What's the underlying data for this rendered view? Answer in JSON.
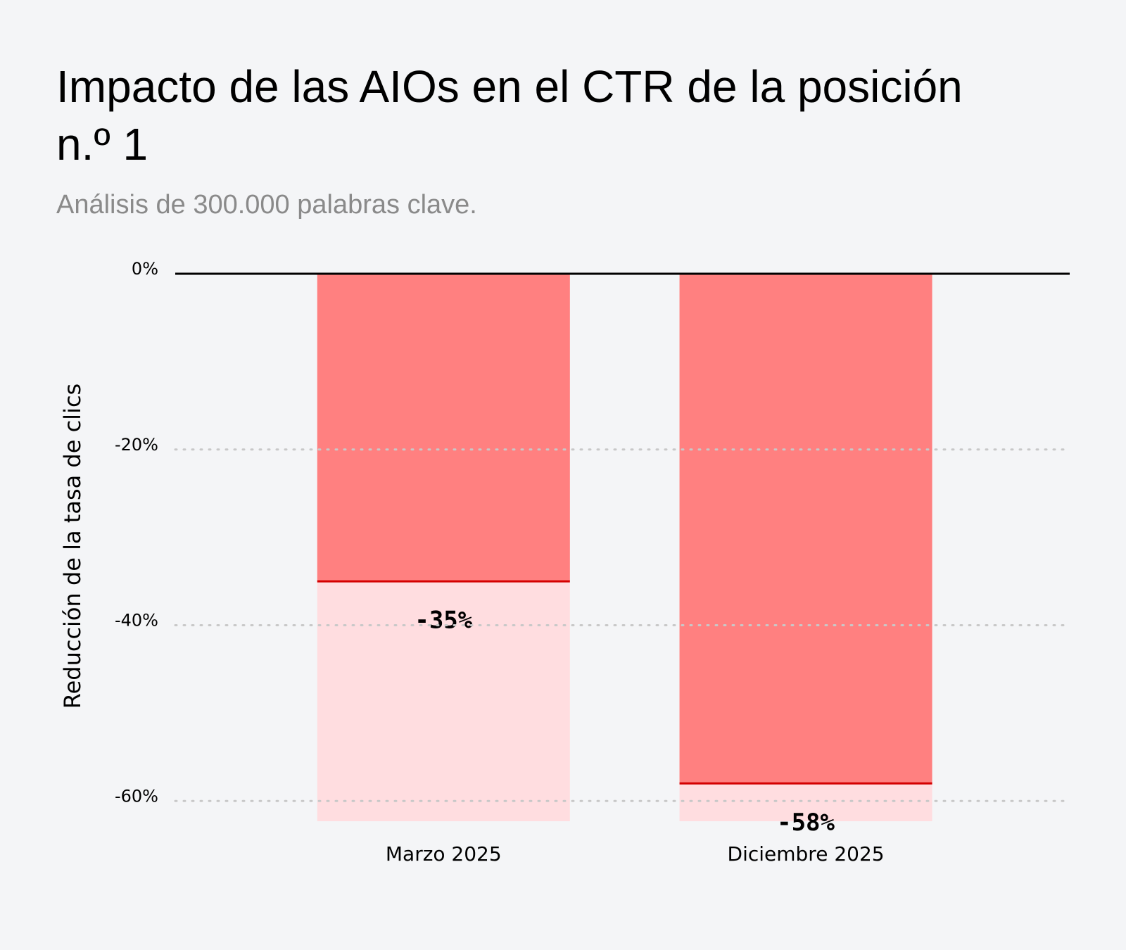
{
  "chart_data": {
    "type": "bar",
    "title": "Impacto de las AIOs en el CTR de la posición n.º 1",
    "subtitle": "Análisis de 300.000 palabras clave.",
    "y_label": "Reducción de la tasa de clics",
    "categories": [
      "Marzo 2025",
      "Diciembre 2025"
    ],
    "values": [
      -35,
      -58
    ],
    "value_labels": [
      "-35%",
      "-58%"
    ],
    "color": "#ff8080",
    "background_color": "#ffdde0",
    "value_line_color": "#d40000",
    "ylim": [
      -62.3,
      0
    ],
    "yticks": [
      {
        "value": 0,
        "label": "0%"
      },
      {
        "value": -20,
        "label": "-20%"
      },
      {
        "value": -40,
        "label": "-40%"
      },
      {
        "value": -60,
        "label": "-60%"
      }
    ],
    "grid": true
  }
}
